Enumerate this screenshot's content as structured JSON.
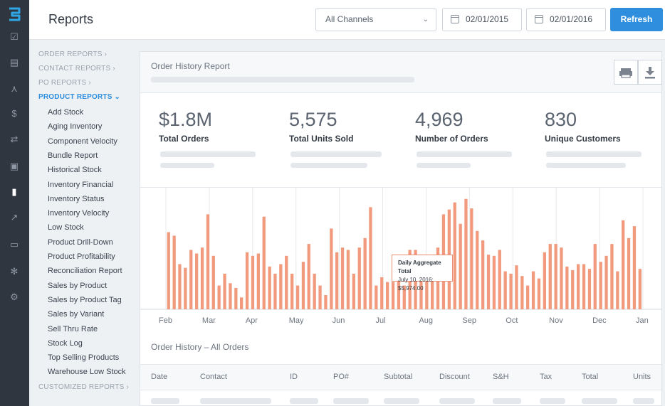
{
  "header": {
    "title": "Reports",
    "channel_select": "All Channels",
    "date_from": "02/01/2015",
    "date_to": "02/01/2016",
    "refresh_label": "Refresh"
  },
  "rail": {
    "icons": [
      "logo-icon",
      "checkbox-icon",
      "notes-icon",
      "network-icon",
      "dollar-icon",
      "transfer-icon",
      "clipboard-icon",
      "bar-chart-icon",
      "trend-icon",
      "contact-icon",
      "users-icon",
      "gear-icon"
    ]
  },
  "sidebar": {
    "order_reports": "ORDER REPORTS",
    "contact_reports": "CONTACT REPORTS",
    "po_reports": "PO REPORTS",
    "product_reports": "PRODUCT REPORTS",
    "items": [
      "Add Stock",
      "Aging Inventory",
      "Component Velocity",
      "Bundle Report",
      "Historical Stock",
      "Inventory Financial",
      "Inventory Status",
      "Inventory Velocity",
      "Low Stock",
      "Product Drill-Down",
      "Product Profitability",
      "Reconciliation Report",
      "Sales by Product",
      "Sales by Product Tag",
      "Sales by Variant",
      "Sell Thru Rate",
      "Stock Log",
      "Top Selling Products",
      "Warehouse Low Stock"
    ],
    "customized_reports": "CUSTOMIZED REPORTS"
  },
  "panel": {
    "title": "Order History Report",
    "print_icon": "printer-icon",
    "download_icon": "download-icon",
    "stats": [
      {
        "value": "$1.8M",
        "label": "Total Orders"
      },
      {
        "value": "5,575",
        "label": "Total Units Sold"
      },
      {
        "value": "4,969",
        "label": "Number of Orders"
      },
      {
        "value": "830",
        "label": "Unique Customers"
      }
    ],
    "tooltip_title": "Daily Aggregate Total",
    "tooltip_value": "July 10, 2016: $5,974.00",
    "subheading": "Order History – All Orders",
    "columns": [
      "Date",
      "Contact",
      "ID",
      "PO#",
      "Subtotal",
      "Discount",
      "S&H",
      "Tax",
      "Total",
      "Units"
    ]
  },
  "chart_data": {
    "type": "bar",
    "color": "#f29a7e",
    "x_ticks": [
      "Feb",
      "Mar",
      "Apr",
      "May",
      "Jun",
      "Jul",
      "Aug",
      "Sep",
      "Oct",
      "Nov",
      "Dec",
      "Jan"
    ],
    "values": [
      0.65,
      0.62,
      0.38,
      0.35,
      0.5,
      0.47,
      0.52,
      0.8,
      0.45,
      0.2,
      0.3,
      0.22,
      0.18,
      0.1,
      0.48,
      0.45,
      0.47,
      0.78,
      0.36,
      0.3,
      0.38,
      0.45,
      0.3,
      0.2,
      0.4,
      0.55,
      0.3,
      0.2,
      0.12,
      0.68,
      0.48,
      0.52,
      0.5,
      0.3,
      0.52,
      0.6,
      0.86,
      0.2,
      0.27,
      0.23,
      0.23,
      0.28,
      0.2,
      0.5,
      0.5,
      0.3,
      0.3,
      0.4,
      0.52,
      0.8,
      0.84,
      0.9,
      0.72,
      0.93,
      0.85,
      0.66,
      0.58,
      0.46,
      0.45,
      0.5,
      0.32,
      0.3,
      0.37,
      0.28,
      0.2,
      0.32,
      0.26,
      0.48,
      0.55,
      0.55,
      0.52,
      0.36,
      0.33,
      0.38,
      0.38,
      0.34,
      0.55,
      0.4,
      0.45,
      0.55,
      0.32,
      0.75,
      0.6,
      0.7,
      0.34
    ]
  }
}
